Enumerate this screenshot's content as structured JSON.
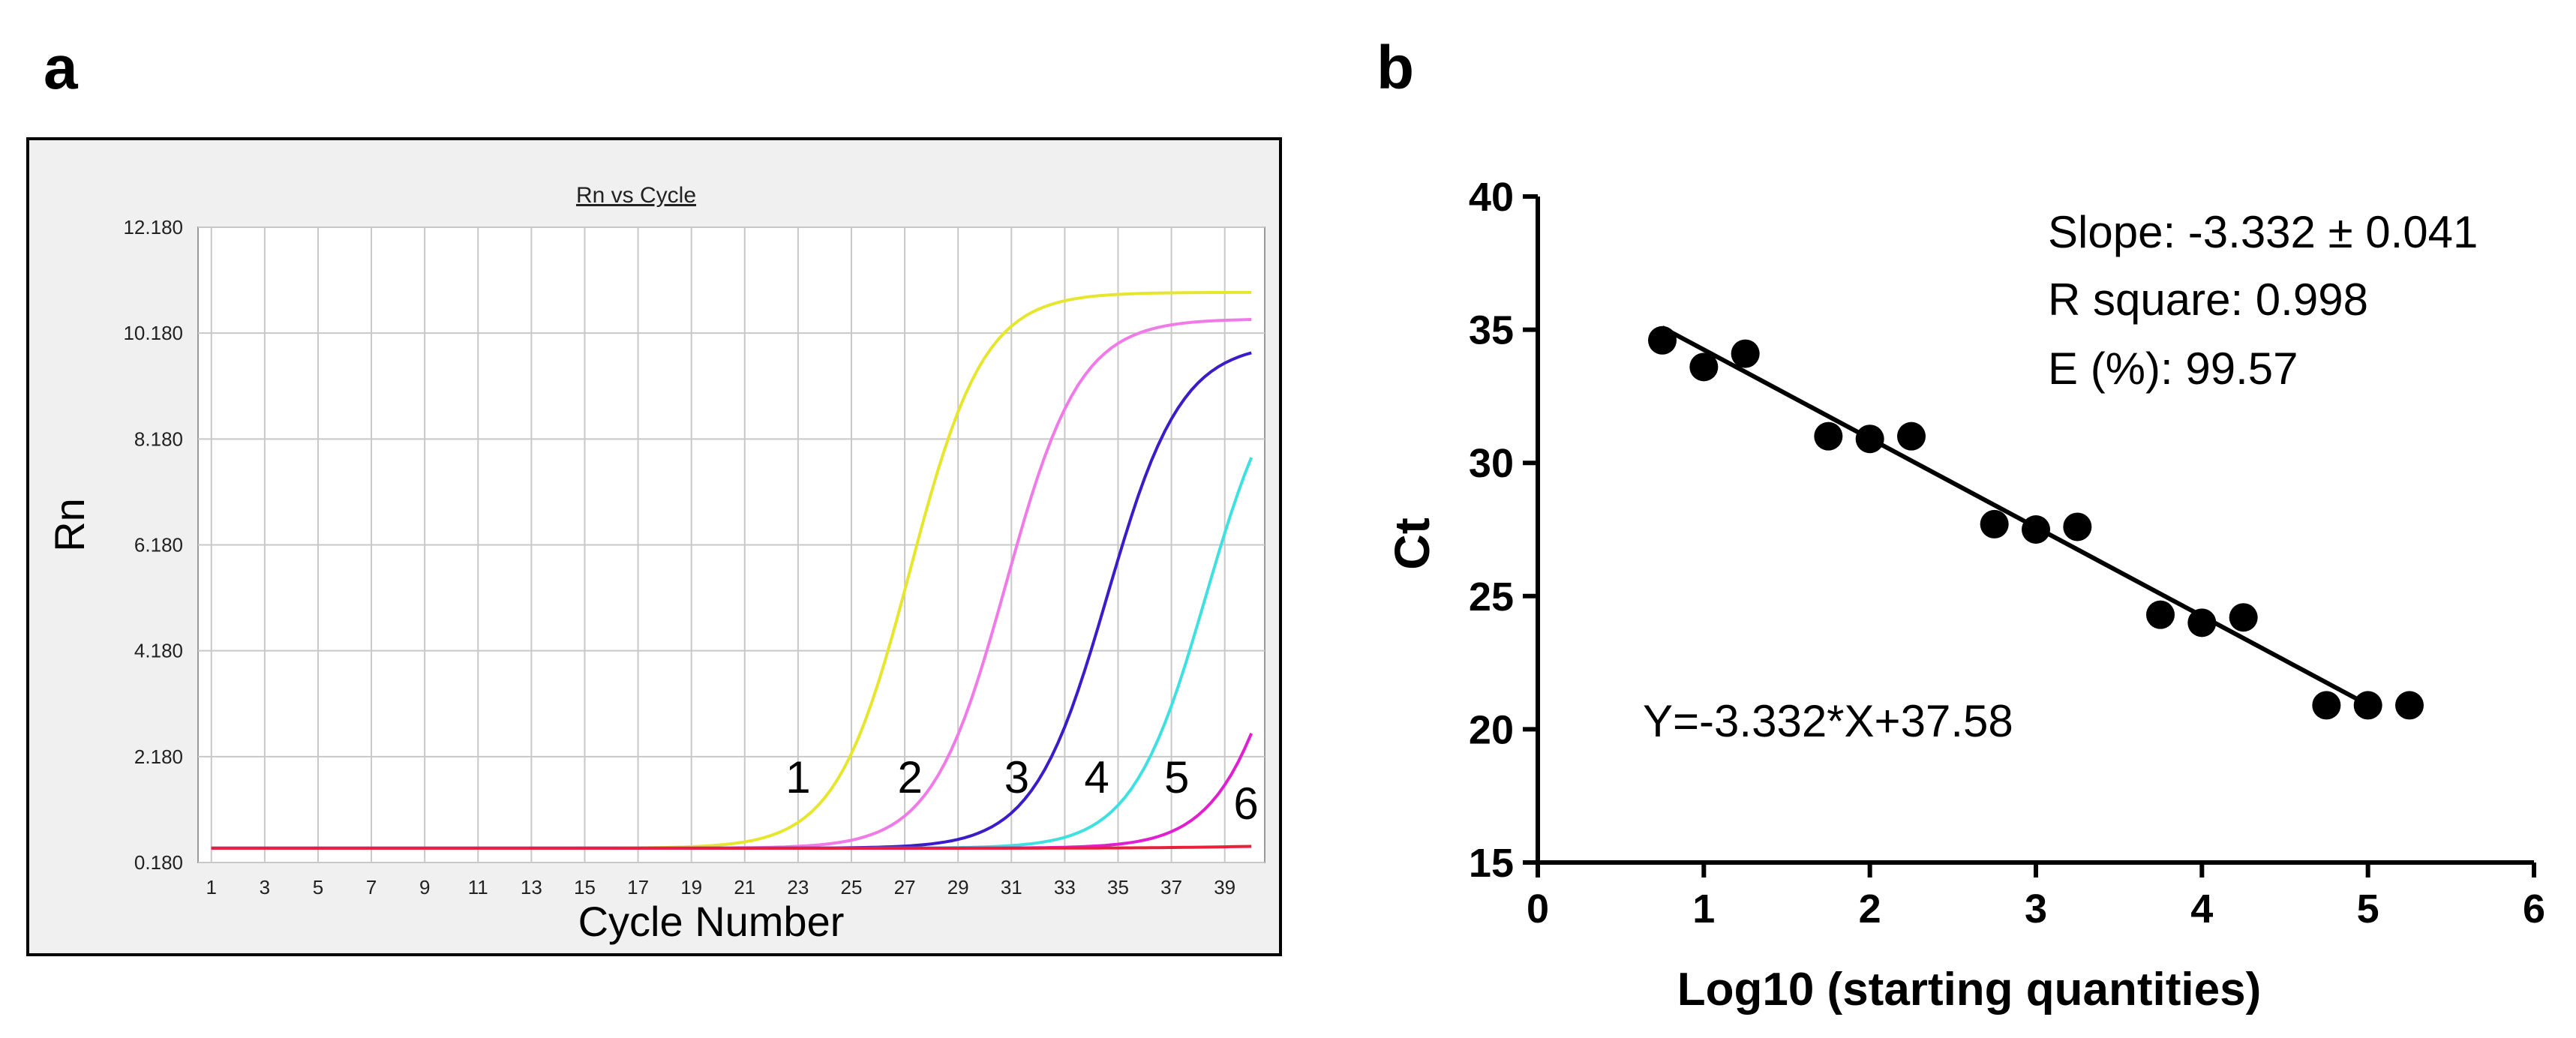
{
  "panel_labels": {
    "a": "a",
    "b": "b"
  },
  "chart_data": [
    {
      "type": "line",
      "title": "Rn vs Cycle",
      "xlabel": "Cycle Number",
      "ylabel": "Rn",
      "xlim": [
        0.5,
        40.5
      ],
      "ylim": [
        0.18,
        12.18
      ],
      "x_ticks": [
        "1",
        "3",
        "5",
        "7",
        "9",
        "11",
        "13",
        "15",
        "17",
        "19",
        "21",
        "23",
        "25",
        "27",
        "29",
        "31",
        "33",
        "35",
        "37",
        "39"
      ],
      "y_ticks": [
        "0.180",
        "2.180",
        "4.180",
        "6.180",
        "8.180",
        "10.180",
        "12.180"
      ],
      "grid": true,
      "series": [
        {
          "name": "1",
          "color": "#e6e62e",
          "baseline": 0.45,
          "top": 10.95,
          "midpoint": 27.2,
          "slope": 0.72
        },
        {
          "name": "2",
          "color": "#f07ae8",
          "baseline": 0.45,
          "top": 10.45,
          "midpoint": 30.8,
          "slope": 0.72
        },
        {
          "name": "3",
          "color": "#3a1cc8",
          "baseline": 0.45,
          "top": 10.0,
          "midpoint": 34.6,
          "slope": 0.72
        },
        {
          "name": "4",
          "color": "#40e0e0",
          "baseline": 0.45,
          "top": 10.0,
          "midpoint": 38.3,
          "slope": 0.72
        },
        {
          "name": "5",
          "color": "#e020d0",
          "baseline": 0.45,
          "top": 10.0,
          "midpoint": 41.7,
          "slope": 0.72
        },
        {
          "name": "6",
          "color": "#e8203c",
          "baseline": 0.45,
          "top": 0.52,
          "midpoint": 40.0,
          "slope": 0.5
        }
      ],
      "curve_labels": [
        {
          "text": "1",
          "cycle": 23.0,
          "rn": 1.5
        },
        {
          "text": "2",
          "cycle": 27.2,
          "rn": 1.5
        },
        {
          "text": "3",
          "cycle": 31.2,
          "rn": 1.5
        },
        {
          "text": "4",
          "cycle": 34.2,
          "rn": 1.5
        },
        {
          "text": "5",
          "cycle": 37.2,
          "rn": 1.5
        },
        {
          "text": "6",
          "cycle": 39.8,
          "rn": 1.0
        }
      ]
    },
    {
      "type": "scatter",
      "xlabel": "Log10 (starting quantities)",
      "ylabel": "Ct",
      "xlim": [
        0,
        6
      ],
      "ylim": [
        15,
        40
      ],
      "x_ticks": [
        "0",
        "1",
        "2",
        "3",
        "4",
        "5",
        "6"
      ],
      "y_ticks": [
        "15",
        "20",
        "25",
        "30",
        "35",
        "40"
      ],
      "points": [
        {
          "x": 0.75,
          "y": 34.6
        },
        {
          "x": 1.0,
          "y": 33.6
        },
        {
          "x": 1.25,
          "y": 34.1
        },
        {
          "x": 1.75,
          "y": 31.0
        },
        {
          "x": 2.0,
          "y": 30.9
        },
        {
          "x": 2.25,
          "y": 31.0
        },
        {
          "x": 2.75,
          "y": 27.7
        },
        {
          "x": 3.0,
          "y": 27.5
        },
        {
          "x": 3.25,
          "y": 27.6
        },
        {
          "x": 3.75,
          "y": 24.3
        },
        {
          "x": 4.0,
          "y": 24.0
        },
        {
          "x": 4.25,
          "y": 24.2
        },
        {
          "x": 4.75,
          "y": 20.9
        },
        {
          "x": 5.0,
          "y": 20.9
        },
        {
          "x": 5.25,
          "y": 20.9
        }
      ],
      "fit": {
        "slope": -3.332,
        "intercept": 37.58,
        "x_range": [
          0.75,
          5.0
        ]
      },
      "annotations": {
        "slope": "Slope: -3.332 ± 0.041",
        "r_square": "R square: 0.998",
        "efficiency": "E (%): 99.57",
        "equation": "Y=-3.332*X+37.58"
      }
    }
  ]
}
